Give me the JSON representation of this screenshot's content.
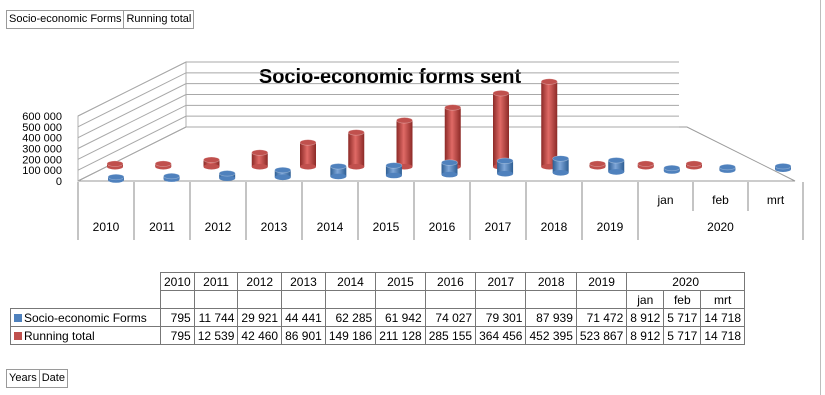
{
  "tags": {
    "top": [
      "Socio-economic Forms",
      "Running total"
    ],
    "bottom": [
      "Years",
      "Date"
    ]
  },
  "colors": {
    "forms": "#4f81bd",
    "running": "#c0504d"
  },
  "chart_data": {
    "type": "bar",
    "title": "Socio-economic forms sent",
    "yticks": [
      "600 000",
      "500 000",
      "400 000",
      "300 000",
      "200 000",
      "100 000",
      "0"
    ],
    "ylim": [
      0,
      600000
    ],
    "grid": true,
    "years": [
      "2010",
      "2011",
      "2012",
      "2013",
      "2014",
      "2015",
      "2016",
      "2017",
      "2018",
      "2019",
      "2020"
    ],
    "months": [
      "jan",
      "feb",
      "mrt"
    ],
    "categories": [
      "2010",
      "2011",
      "2012",
      "2013",
      "2014",
      "2015",
      "2016",
      "2017",
      "2018",
      "2019",
      "jan",
      "feb",
      "mrt"
    ],
    "series": [
      {
        "name": "Socio-economic Forms",
        "values": [
          795,
          11744,
          29921,
          44441,
          62285,
          61942,
          74027,
          79301,
          87939,
          71472,
          8912,
          5717,
          14718
        ],
        "labels": [
          "795",
          "11 744",
          "29 921",
          "44 441",
          "62 285",
          "61 942",
          "74 027",
          "79 301",
          "87 939",
          "71 472",
          "8 912",
          "5 717",
          "14 718"
        ]
      },
      {
        "name": "Running total",
        "values": [
          795,
          12539,
          42460,
          86901,
          149186,
          211128,
          285155,
          364456,
          452395,
          523867,
          8912,
          5717,
          14718
        ],
        "labels": [
          "795",
          "12 539",
          "42 460",
          "86 901",
          "149 186",
          "211 128",
          "285 155",
          "364 456",
          "452 395",
          "523 867",
          "8 912",
          "5 717",
          "14 718"
        ]
      }
    ]
  }
}
